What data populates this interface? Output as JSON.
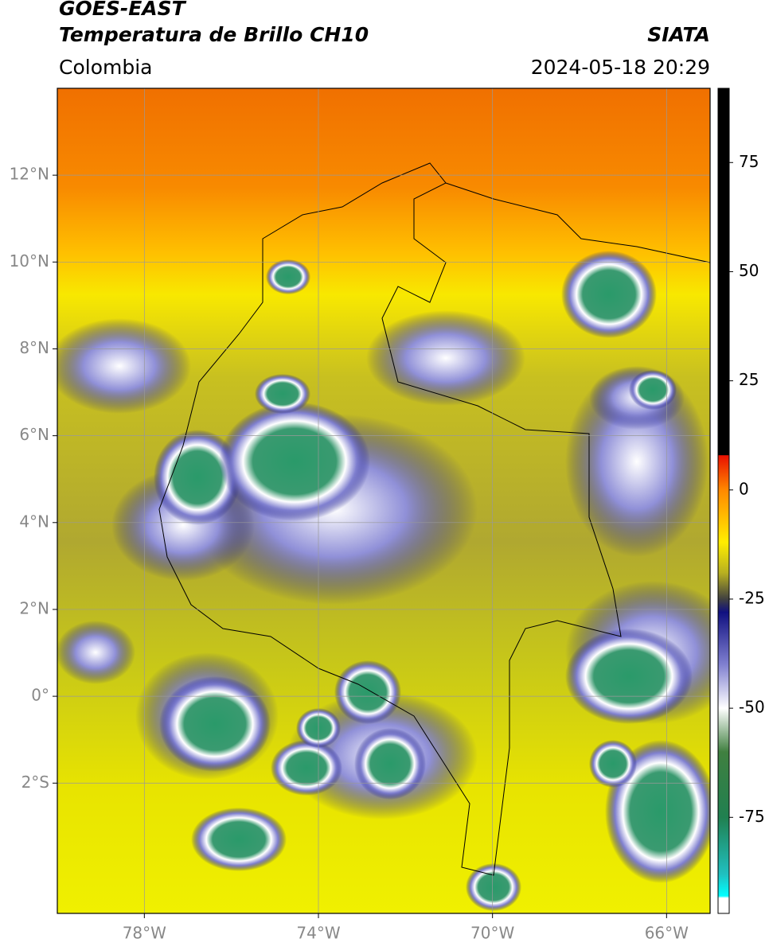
{
  "map": {
    "title": "GOES-EAST",
    "subtitle": "Temperatura de Brillo CH10",
    "region": "Colombia",
    "source": "SIATA",
    "datetime": "2024-05-18 20:29",
    "xlim": [
      -80,
      -65
    ],
    "ylim": [
      -5,
      14
    ],
    "xticks": [
      {
        "value": -78,
        "label": "78°W"
      },
      {
        "value": -74,
        "label": "74°W"
      },
      {
        "value": -70,
        "label": "70°W"
      },
      {
        "value": -66,
        "label": "66°W"
      }
    ],
    "yticks": [
      {
        "value": 12,
        "label": "12°N"
      },
      {
        "value": 10,
        "label": "10°N"
      },
      {
        "value": 8,
        "label": "8°N"
      },
      {
        "value": 6,
        "label": "6°N"
      },
      {
        "value": 4,
        "label": "4°N"
      },
      {
        "value": 2,
        "label": "2°N"
      },
      {
        "value": 0,
        "label": "0°"
      },
      {
        "value": -2,
        "label": "2°S"
      }
    ],
    "grid": true,
    "colorbar": {
      "clim": [
        -97,
        92
      ],
      "ticks": [
        75,
        50,
        25,
        0,
        -25,
        -50,
        -75
      ],
      "stops": [
        {
          "value": 92,
          "color": "#000000"
        },
        {
          "value": 8,
          "color": "#000000"
        },
        {
          "value": 7.9,
          "color": "#e81000"
        },
        {
          "value": 0,
          "color": "#ff8800"
        },
        {
          "value": -12,
          "color": "#ffee00"
        },
        {
          "value": -19,
          "color": "#b8b020"
        },
        {
          "value": -25,
          "color": "#404040"
        },
        {
          "value": -28,
          "color": "#101080"
        },
        {
          "value": -40,
          "color": "#8080d0"
        },
        {
          "value": -50,
          "color": "#ffffff"
        },
        {
          "value": -60,
          "color": "#408040"
        },
        {
          "value": -75,
          "color": "#208050"
        },
        {
          "value": -88,
          "color": "#20c0c0"
        },
        {
          "value": -93,
          "color": "#00ffff"
        },
        {
          "value": -93.5,
          "color": "#ffffff"
        },
        {
          "value": -97,
          "color": "#ffffff"
        }
      ]
    }
  }
}
